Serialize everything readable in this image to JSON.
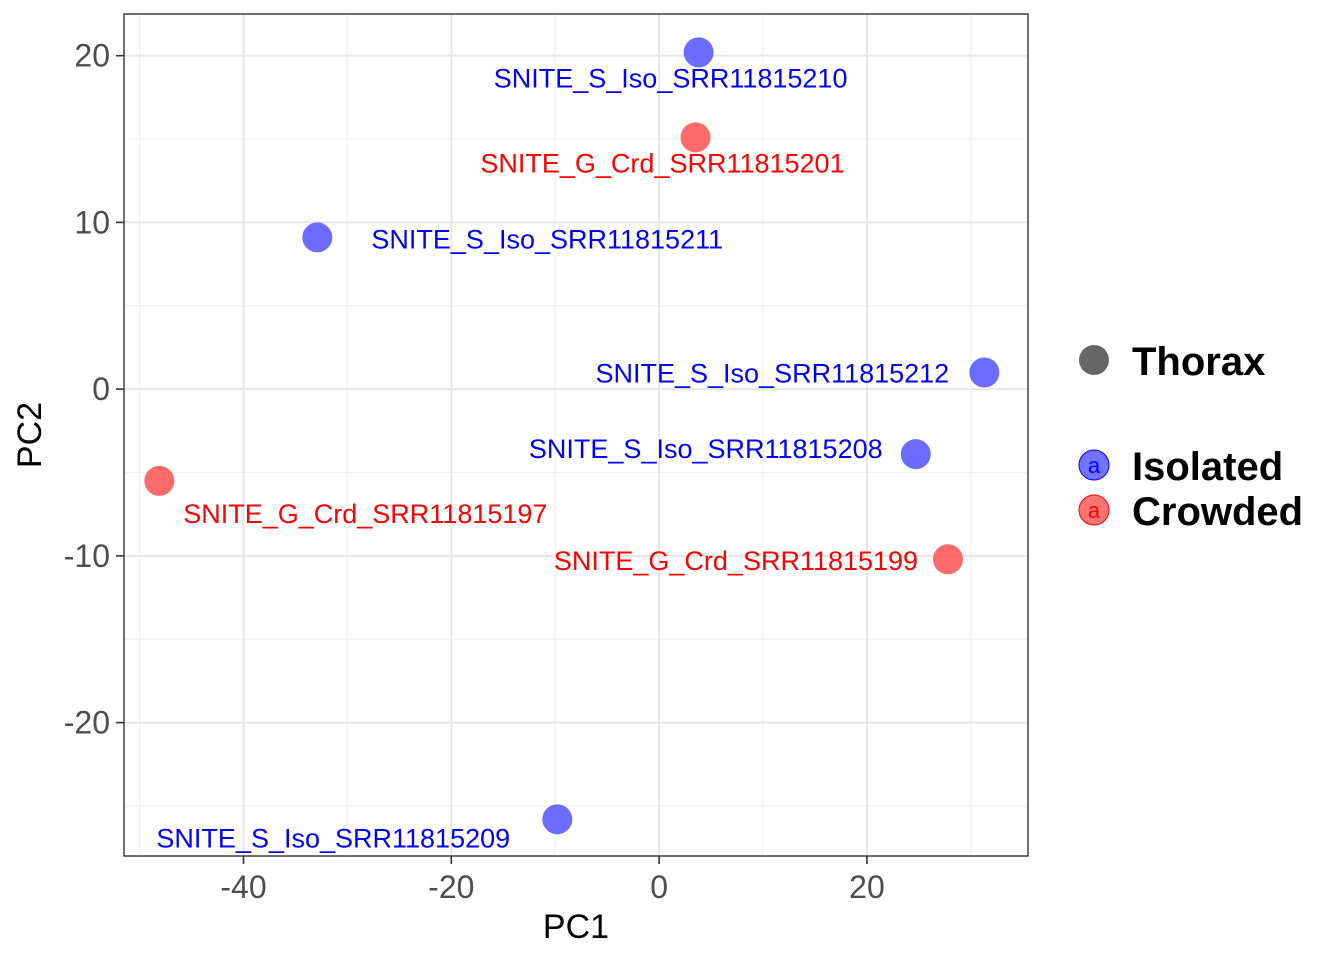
{
  "chart_data": {
    "type": "scatter",
    "title": "",
    "xlabel": "PC1",
    "ylabel": "PC2",
    "xlim": [
      -51.5,
      35.5
    ],
    "ylim": [
      -28,
      22.5
    ],
    "x_ticks": [
      -40,
      -20,
      0,
      20
    ],
    "y_ticks": [
      -20,
      -10,
      0,
      10,
      20
    ],
    "x_tick_labels": [
      "-40",
      "-20",
      "0",
      "20"
    ],
    "y_tick_labels": [
      "-20",
      "-10",
      "0",
      "10",
      "20"
    ],
    "grid": true,
    "legend_position": "right",
    "legend": {
      "shape_title": "Thorax",
      "groups": [
        {
          "name": "Isolated",
          "color": "#5b5bff",
          "text_color": "#0000ff",
          "key_letter": "a"
        },
        {
          "name": "Crowded",
          "color": "#ff5b5b",
          "text_color": "#ff0000",
          "key_letter": "a"
        }
      ]
    },
    "series": [
      {
        "name": "Isolated",
        "color": "#5b5bff",
        "label_color": "#0000ff",
        "points": [
          {
            "x": 3.8,
            "y": 20.2,
            "label": "SNITE_S_Iso_SRR11815210"
          },
          {
            "x": -32.9,
            "y": 9.1,
            "label": "SNITE_S_Iso_SRR11815211"
          },
          {
            "x": 31.3,
            "y": 1.0,
            "label": "SNITE_S_Iso_SRR11815212"
          },
          {
            "x": 24.7,
            "y": -3.9,
            "label": "SNITE_S_Iso_SRR11815208"
          },
          {
            "x": -9.8,
            "y": -25.8,
            "label": "SNITE_S_Iso_SRR11815209"
          }
        ]
      },
      {
        "name": "Crowded",
        "color": "#ff5b5b",
        "label_color": "#ff0000",
        "points": [
          {
            "x": 3.5,
            "y": 15.1,
            "label": "SNITE_G_Crd_SRR11815201"
          },
          {
            "x": -48.1,
            "y": -5.5,
            "label": "SNITE_G_Crd_SRR11815197"
          },
          {
            "x": 27.8,
            "y": -10.2,
            "label": "SNITE_G_Crd_SRR11815199"
          }
        ]
      }
    ]
  }
}
